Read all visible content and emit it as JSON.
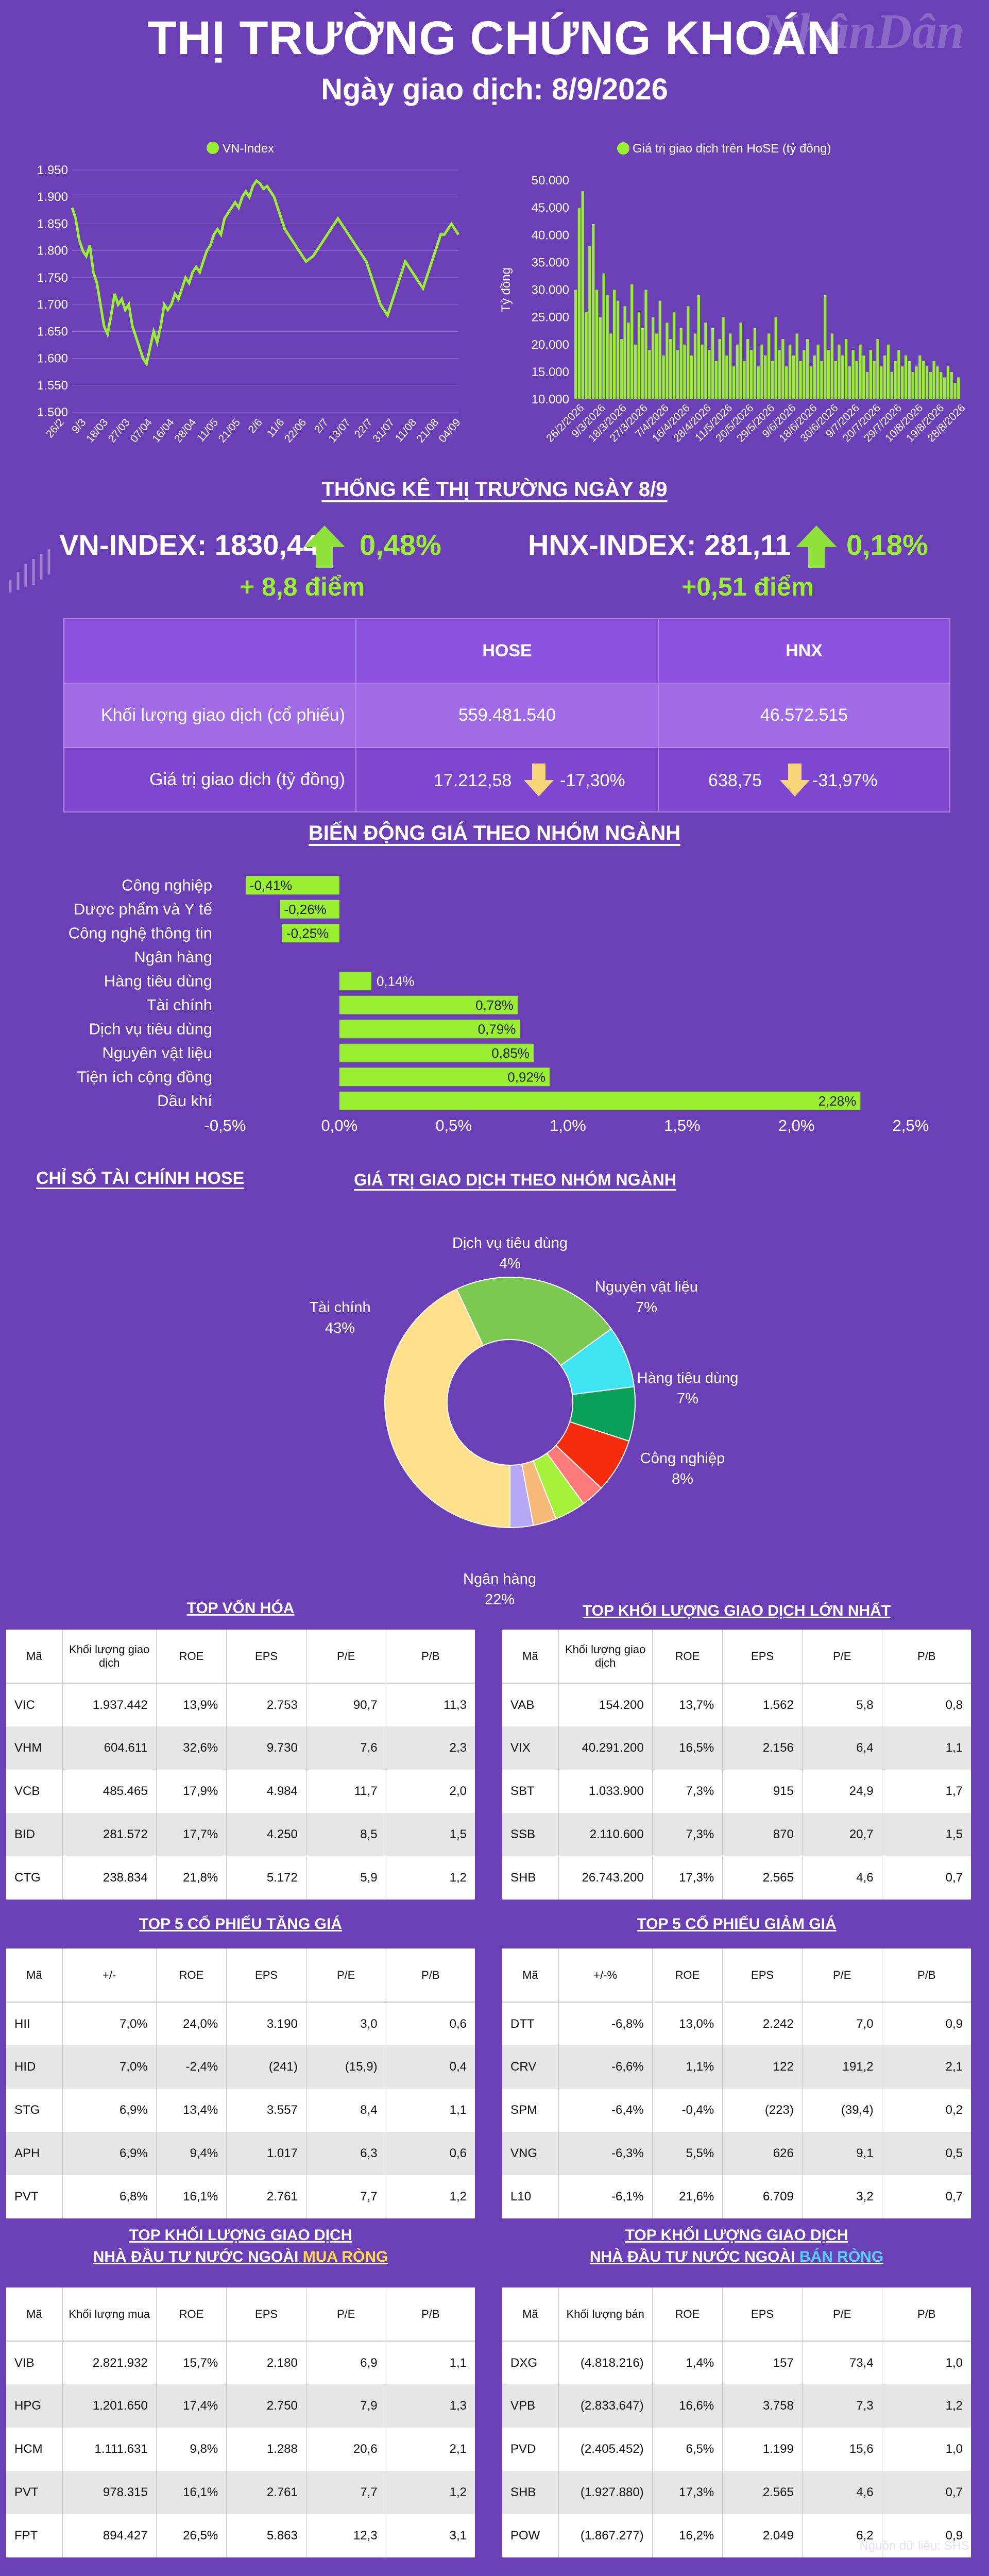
{
  "header": {
    "title": "THỊ TRƯỜNG CHỨNG KHOÁN",
    "subtitle": "Ngày giao dịch: 8/9/2026",
    "logo": "NhânDân"
  },
  "colors": {
    "bg": "#6b3fb6",
    "lime": "#9bef32",
    "up_arrow": "#8ee23a",
    "down_arrow": "#f7d37a"
  },
  "chart_data": [
    {
      "type": "line",
      "legend": "VN-Index",
      "ylim": [
        1500,
        1950
      ],
      "yticks": [
        "1.950",
        "1.900",
        "1.850",
        "1.800",
        "1.750",
        "1.700",
        "1.650",
        "1.600",
        "1.550",
        "1.500"
      ],
      "xticks": [
        "26/2",
        "9/3",
        "18/03",
        "27/03",
        "07/04",
        "16/04",
        "28/04",
        "11/05",
        "21/05",
        "2/6",
        "11/6",
        "22/06",
        "2/7",
        "13/07",
        "22/7",
        "31/07",
        "11/08",
        "21/08",
        "04/09"
      ],
      "values": [
        1880,
        1860,
        1820,
        1800,
        1790,
        1810,
        1760,
        1740,
        1700,
        1660,
        1645,
        1680,
        1720,
        1700,
        1710,
        1690,
        1700,
        1660,
        1640,
        1620,
        1600,
        1590,
        1620,
        1650,
        1630,
        1660,
        1700,
        1690,
        1700,
        1720,
        1710,
        1730,
        1750,
        1740,
        1760,
        1770,
        1760,
        1780,
        1800,
        1810,
        1830,
        1840,
        1830,
        1860,
        1870,
        1880,
        1890,
        1880,
        1900,
        1910,
        1900,
        1920,
        1930,
        1925,
        1915,
        1920,
        1910,
        1900,
        1880,
        1860,
        1840,
        1830,
        1820,
        1810,
        1800,
        1790,
        1780,
        1785,
        1790,
        1800,
        1810,
        1820,
        1830,
        1840,
        1850,
        1860,
        1850,
        1840,
        1830,
        1820,
        1810,
        1800,
        1790,
        1780,
        1760,
        1740,
        1720,
        1700,
        1690,
        1680,
        1700,
        1720,
        1740,
        1760,
        1780,
        1770,
        1760,
        1750,
        1740,
        1730,
        1750,
        1770,
        1790,
        1810,
        1830,
        1830,
        1840,
        1850,
        1840,
        1830
      ]
    },
    {
      "type": "bar",
      "legend": "Giá trị giao dịch trên HoSE (tỷ đồng)",
      "ylabel": "Tỷ đồng",
      "ylim": [
        10000,
        50000
      ],
      "yticks": [
        "50.000",
        "45.000",
        "40.000",
        "35.000",
        "30.000",
        "25.000",
        "20.000",
        "15.000",
        "10.000"
      ],
      "xticks": [
        "26/2/2026",
        "9/3/2026",
        "18/3/2026",
        "27/3/2026",
        "7/4/2026",
        "16/4/2026",
        "28/4/2026",
        "11/5/2026",
        "20/5/2026",
        "29/5/2026",
        "9/6/2026",
        "18/6/2026",
        "30/6/2026",
        "9/7/2026",
        "20/7/2026",
        "29/7/2026",
        "10/8/2026",
        "19/8/2026",
        "28/8/2026"
      ],
      "values": [
        30000,
        45000,
        48000,
        26000,
        38000,
        42000,
        30000,
        25000,
        33000,
        29000,
        22000,
        30000,
        28000,
        21000,
        27000,
        24000,
        31000,
        20000,
        26000,
        23000,
        30000,
        19000,
        25000,
        22000,
        28000,
        18000,
        24000,
        21000,
        26000,
        19000,
        23000,
        20000,
        27000,
        18000,
        22000,
        29000,
        20000,
        24000,
        19000,
        23000,
        17000,
        21000,
        25000,
        18000,
        22000,
        16000,
        20000,
        24000,
        17000,
        21000,
        19000,
        23000,
        16000,
        20000,
        18000,
        22000,
        17000,
        25000,
        19000,
        21000,
        16000,
        20000,
        18000,
        22000,
        17000,
        19000,
        21000,
        16000,
        18000,
        20000,
        17000,
        29000,
        19000,
        22000,
        17000,
        20000,
        18000,
        21000,
        16000,
        19000,
        17000,
        20000,
        18000,
        15000,
        19000,
        17000,
        21000,
        16000,
        18000,
        20000,
        15000,
        17000,
        19000,
        16000,
        18000,
        17000,
        15000,
        16000,
        18000,
        17000,
        16000,
        15000,
        17000,
        16000,
        15000,
        14000,
        16000,
        15000,
        13000,
        14000
      ]
    },
    {
      "type": "bar",
      "orientation": "horizontal",
      "title": "BIẾN ĐỘNG GIÁ THEO NHÓM NGÀNH",
      "categories": [
        "Công nghiệp",
        "Dược phẩm và Y tế",
        "Công nghệ thông tin",
        "Ngân hàng",
        "Hàng tiêu dùng",
        "Tài chính",
        "Dịch vụ tiêu dùng",
        "Nguyên vật liệu",
        "Tiện ích cộng đồng",
        "Dầu khí"
      ],
      "values": [
        -0.41,
        -0.26,
        -0.25,
        0.0,
        0.14,
        0.78,
        0.79,
        0.85,
        0.92,
        2.28
      ],
      "labels": [
        "-0,41%",
        "-0,26%",
        "-0,25%",
        "",
        "0,14%",
        "0,78%",
        "0,79%",
        "0,85%",
        "0,92%",
        "2,28%"
      ],
      "xlim": [
        -0.5,
        2.5
      ],
      "xticks": [
        "-0,5%",
        "0,0%",
        "0,5%",
        "1,0%",
        "1,5%",
        "2,0%",
        "2,5%"
      ]
    },
    {
      "type": "pie",
      "title": "GIÁ TRỊ GIAO DỊCH THEO NHÓM NGÀNH",
      "slices": [
        {
          "name": "Tài chính",
          "pct": 43,
          "color": "#ffe08a",
          "label": "Tài chính\n43%"
        },
        {
          "name": "Ngân hàng",
          "pct": 22,
          "color": "#7bc950",
          "label": "Ngân hàng\n22%"
        },
        {
          "name": "Công nghiệp",
          "pct": 8,
          "color": "#3ee4f2",
          "label": "Công nghiệp\n8%"
        },
        {
          "name": "Hàng tiêu dùng",
          "pct": 7,
          "color": "#0aa05a",
          "label": "Hàng tiêu dùng\n7%"
        },
        {
          "name": "Nguyên vật liệu",
          "pct": 7,
          "color": "#f52d0c",
          "label": "Nguyên vật liệu\n7%"
        },
        {
          "name": "Other1",
          "pct": 3,
          "color": "#ff7b7b",
          "label": ""
        },
        {
          "name": "Dịch vụ tiêu dùng",
          "pct": 4,
          "color": "#a6f23a",
          "label": "Dịch vụ tiêu dùng\n4%"
        },
        {
          "name": "Other2",
          "pct": 3,
          "color": "#f8b878",
          "label": ""
        },
        {
          "name": "Other3",
          "pct": 3,
          "color": "#b7a6f5",
          "label": ""
        }
      ]
    }
  ],
  "stats": {
    "heading": "THỐNG KÊ THỊ TRƯỜNG NGÀY 8/9",
    "vn": {
      "label": "VN-INDEX: 1830,44",
      "pct": "0,48%",
      "pts": "+ 8,8 điểm"
    },
    "hnx": {
      "label": "HNX-INDEX: 281,11",
      "pct": "0,18%",
      "pts": "+0,51 điểm"
    },
    "table": {
      "cols": [
        "HOSE",
        "HNX"
      ],
      "row1": {
        "label": "Khối lượng giao dịch (cổ phiếu)",
        "hose": "559.481.540",
        "hnx": "46.572.515"
      },
      "row2": {
        "label": "Giá trị giao dịch (tỷ đồng)",
        "hose": "17.212,58",
        "hose_pct": "-17,30%",
        "hnx": "638,75",
        "hnx_pct": "-31,97%"
      }
    }
  },
  "fin": {
    "heading": "CHỈ SỐ TÀI CHÍNH HOSE"
  },
  "tables": {
    "t1": {
      "title": "TOP VỐN HÓA",
      "headers": [
        "Mã",
        "Khối lượng giao dịch",
        "ROE",
        "EPS",
        "P/E",
        "P/B"
      ],
      "rows": [
        [
          "VIC",
          "1.937.442",
          "13,9%",
          "2.753",
          "90,7",
          "11,3"
        ],
        [
          "VHM",
          "604.611",
          "32,6%",
          "9.730",
          "7,6",
          "2,3"
        ],
        [
          "VCB",
          "485.465",
          "17,9%",
          "4.984",
          "11,7",
          "2,0"
        ],
        [
          "BID",
          "281.572",
          "17,7%",
          "4.250",
          "8,5",
          "1,5"
        ],
        [
          "CTG",
          "238.834",
          "21,8%",
          "5.172",
          "5,9",
          "1,2"
        ]
      ]
    },
    "t2": {
      "title": "TOP KHỐI LƯỢNG GIAO DỊCH LỚN NHẤT",
      "headers": [
        "Mã",
        "Khối lượng giao dịch",
        "ROE",
        "EPS",
        "P/E",
        "P/B"
      ],
      "rows": [
        [
          "VAB",
          "154.200",
          "13,7%",
          "1.562",
          "5,8",
          "0,8"
        ],
        [
          "VIX",
          "40.291.200",
          "16,5%",
          "2.156",
          "6,4",
          "1,1"
        ],
        [
          "SBT",
          "1.033.900",
          "7,3%",
          "915",
          "24,9",
          "1,7"
        ],
        [
          "SSB",
          "2.110.600",
          "7,3%",
          "870",
          "20,7",
          "1,5"
        ],
        [
          "SHB",
          "26.743.200",
          "17,3%",
          "2.565",
          "4,6",
          "0,7"
        ]
      ]
    },
    "t3": {
      "title": "TOP 5 CỔ PHIẾU TĂNG GIÁ",
      "headers": [
        "Mã",
        "+/-",
        "ROE",
        "EPS",
        "P/E",
        "P/B"
      ],
      "rows": [
        [
          "HII",
          "7,0%",
          "24,0%",
          "3.190",
          "3,0",
          "0,6"
        ],
        [
          "HID",
          "7,0%",
          "-2,4%",
          "(241)",
          "(15,9)",
          "0,4"
        ],
        [
          "STG",
          "6,9%",
          "13,4%",
          "3.557",
          "8,4",
          "1,1"
        ],
        [
          "APH",
          "6,9%",
          "9,4%",
          "1.017",
          "6,3",
          "0,6"
        ],
        [
          "PVT",
          "6,8%",
          "16,1%",
          "2.761",
          "7,7",
          "1,2"
        ]
      ]
    },
    "t4": {
      "title": "TOP 5 CỔ PHIẾU GIẢM GIÁ",
      "headers": [
        "Mã",
        "+/-%",
        "ROE",
        "EPS",
        "P/E",
        "P/B"
      ],
      "rows": [
        [
          "DTT",
          "-6,8%",
          "13,0%",
          "2.242",
          "7,0",
          "0,9"
        ],
        [
          "CRV",
          "-6,6%",
          "1,1%",
          "122",
          "191,2",
          "2,1"
        ],
        [
          "SPM",
          "-6,4%",
          "-0,4%",
          "(223)",
          "(39,4)",
          "0,2"
        ],
        [
          "VNG",
          "-6,3%",
          "5,5%",
          "626",
          "9,1",
          "0,5"
        ],
        [
          "L10",
          "-6,1%",
          "21,6%",
          "6.709",
          "3,2",
          "0,7"
        ]
      ]
    },
    "t5": {
      "title1": "TOP KHỐI LƯỢNG GIAO DỊCH",
      "title2a": "NHÀ ĐẦU TƯ NƯỚC NGOÀI ",
      "title2b": "MUA RÒNG",
      "headers": [
        "Mã",
        "Khối lượng mua",
        "ROE",
        "EPS",
        "P/E",
        "P/B"
      ],
      "rows": [
        [
          "VIB",
          "2.821.932",
          "15,7%",
          "2.180",
          "6,9",
          "1,1"
        ],
        [
          "HPG",
          "1.201.650",
          "17,4%",
          "2.750",
          "7,9",
          "1,3"
        ],
        [
          "HCM",
          "1.111.631",
          "9,8%",
          "1.288",
          "20,6",
          "2,1"
        ],
        [
          "PVT",
          "978.315",
          "16,1%",
          "2.761",
          "7,7",
          "1,2"
        ],
        [
          "FPT",
          "894.427",
          "26,5%",
          "5.863",
          "12,3",
          "3,1"
        ]
      ]
    },
    "t6": {
      "title1": "TOP KHỐI LƯỢNG GIAO DỊCH",
      "title2a": "NHÀ ĐẦU TƯ NƯỚC NGOÀI ",
      "title2b": "BÁN RÒNG",
      "headers": [
        "Mã",
        "Khối lượng bán",
        "ROE",
        "EPS",
        "P/E",
        "P/B"
      ],
      "rows": [
        [
          "DXG",
          "(4.818.216)",
          "1,4%",
          "157",
          "73,4",
          "1,0"
        ],
        [
          "VPB",
          "(2.833.647)",
          "16,6%",
          "3.758",
          "7,3",
          "1,2"
        ],
        [
          "PVD",
          "(2.405.452)",
          "6,5%",
          "1.199",
          "15,6",
          "1,0"
        ],
        [
          "SHB",
          "(1.927.880)",
          "17,3%",
          "2.565",
          "4,6",
          "0,7"
        ],
        [
          "POW",
          "(1.867.277)",
          "16,2%",
          "2.049",
          "6,2",
          "0,9"
        ]
      ]
    }
  },
  "footer": {
    "source": "Nguồn dữ liệu: SHS"
  }
}
